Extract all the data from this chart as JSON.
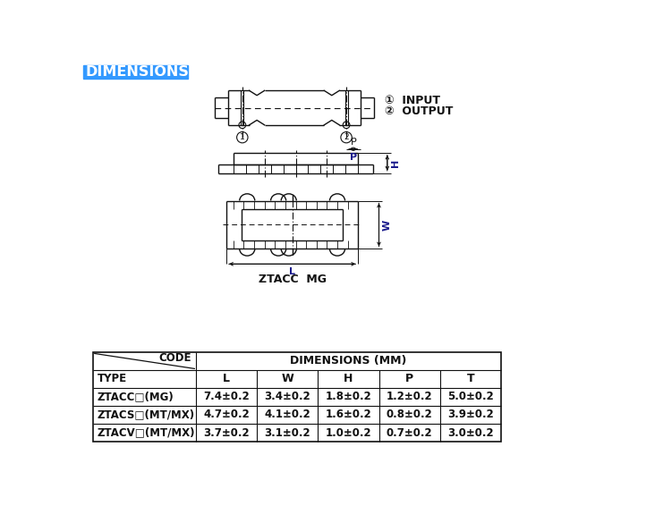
{
  "title": "DIMENSIONS:",
  "title_bg": "#3399FF",
  "title_color": "#FFFFFF",
  "fig_bg": "#FFFFFF",
  "table_rows": [
    [
      "ZTACC□(MG)",
      "7.4±0.2",
      "3.4±0.2",
      "1.8±0.2",
      "1.2±0.2",
      "5.0±0.2"
    ],
    [
      "ZTACS□(MT/MX)",
      "4.7±0.2",
      "4.1±0.2",
      "1.6±0.2",
      "0.8±0.2",
      "3.9±0.2"
    ],
    [
      "ZTACV□(MT/MX)",
      "3.7±0.2",
      "3.1±0.2",
      "1.0±0.2",
      "0.7±0.2",
      "3.0±0.2"
    ]
  ],
  "caption": "ZTACC  MG",
  "input_label": "INPUT",
  "output_label": "OUTPUT",
  "text_color": "#1a1a8c",
  "line_color": "#1a1a1a",
  "dark_color": "#111111"
}
